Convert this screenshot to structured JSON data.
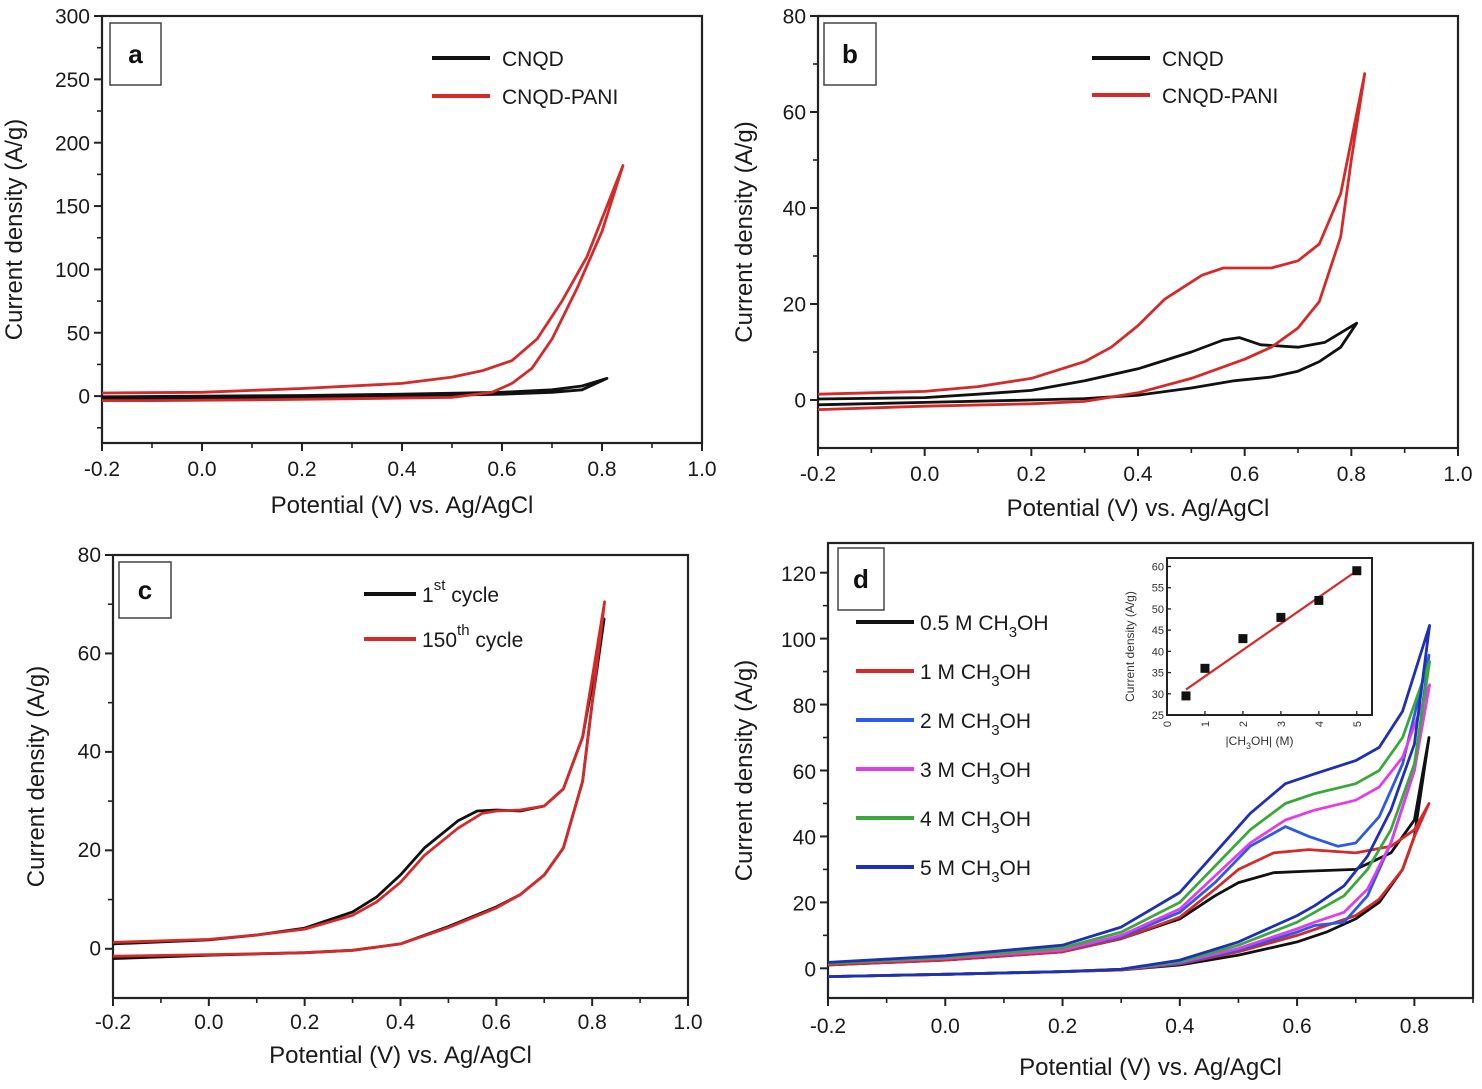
{
  "figure": {
    "panels": [
      "a",
      "b",
      "c",
      "d"
    ]
  },
  "chart_data": [
    {
      "id": "a",
      "type": "line",
      "panel_label": "a",
      "title": "",
      "xlabel": "Potential (V) vs. Ag/AgCl",
      "ylabel": "Current density (A/g)",
      "xlim": [
        -0.2,
        1.0
      ],
      "ylim": [
        -37,
        300
      ],
      "xticks": [
        -0.2,
        0.0,
        0.2,
        0.4,
        0.6,
        0.8,
        1.0
      ],
      "xtick_labels": [
        "-0.2",
        "0.0",
        "0.2",
        "0.4",
        "0.6",
        "0.8",
        "1.0"
      ],
      "yticks": [
        0,
        50,
        100,
        150,
        200,
        250,
        300
      ],
      "ytick_labels": [
        "0",
        "50",
        "100",
        "150",
        "200",
        "250",
        "300"
      ],
      "grid": false,
      "legend_position": "top-right",
      "series": [
        {
          "name": "CNQD",
          "color": "#111111",
          "x": [
            -0.2,
            0.0,
            0.2,
            0.4,
            0.6,
            0.7,
            0.76,
            0.81,
            0.76,
            0.7,
            0.6,
            0.4,
            0.2,
            0.0,
            -0.2
          ],
          "y": [
            -0.5,
            0,
            0.5,
            1.5,
            3,
            5,
            8,
            14,
            5,
            3,
            1.5,
            0,
            -1,
            -1.5,
            -2
          ]
        },
        {
          "name": "CNQD-PANI",
          "color": "#d42a2a",
          "x": [
            -0.2,
            0.0,
            0.2,
            0.4,
            0.5,
            0.56,
            0.62,
            0.67,
            0.72,
            0.77,
            0.842,
            0.8,
            0.75,
            0.7,
            0.66,
            0.62,
            0.58,
            0.5,
            0.3,
            0.1,
            -0.1,
            -0.2
          ],
          "y": [
            2.5,
            3,
            6,
            10,
            15,
            20,
            28,
            45,
            75,
            110,
            182,
            130,
            85,
            45,
            22,
            10,
            3,
            -1,
            -2,
            -3,
            -3.5,
            -3.5
          ]
        }
      ]
    },
    {
      "id": "b",
      "type": "line",
      "panel_label": "b",
      "title": "",
      "xlabel": "Potential (V) vs. Ag/AgCl",
      "ylabel": "Current density (A/g)",
      "xlim": [
        -0.2,
        1.0
      ],
      "ylim": [
        -10,
        80
      ],
      "xticks": [
        -0.2,
        0.0,
        0.2,
        0.4,
        0.6,
        0.8,
        1.0
      ],
      "xtick_labels": [
        "-0.2",
        "0.0",
        "0.2",
        "0.4",
        "0.6",
        "0.8",
        "1.0"
      ],
      "yticks": [
        0,
        20,
        40,
        60,
        80
      ],
      "ytick_labels": [
        "0",
        "20",
        "40",
        "60",
        "80"
      ],
      "grid": false,
      "legend_position": "top-right",
      "series": [
        {
          "name": "CNQD",
          "color": "#111111",
          "x": [
            -0.2,
            0.0,
            0.1,
            0.2,
            0.3,
            0.4,
            0.5,
            0.56,
            0.59,
            0.63,
            0.7,
            0.75,
            0.81,
            0.78,
            0.74,
            0.7,
            0.65,
            0.58,
            0.5,
            0.4,
            0.3,
            0.2,
            0.0,
            -0.2
          ],
          "y": [
            0.2,
            0.5,
            1.2,
            2,
            4,
            6.5,
            10,
            12.5,
            13,
            11.5,
            11,
            12,
            16,
            11,
            8,
            6,
            4.8,
            4,
            2.5,
            1,
            0.3,
            0,
            -0.5,
            -1
          ],
          "peak_anodic": {
            "x": 0.58,
            "y": 13
          }
        },
        {
          "name": "CNQD-PANI",
          "color": "#d42a2a",
          "x": [
            -0.2,
            0.0,
            0.1,
            0.2,
            0.3,
            0.35,
            0.4,
            0.45,
            0.52,
            0.56,
            0.6,
            0.65,
            0.7,
            0.74,
            0.78,
            0.825,
            0.8,
            0.78,
            0.74,
            0.7,
            0.65,
            0.6,
            0.5,
            0.4,
            0.3,
            0.2,
            0.0,
            -0.2
          ],
          "y": [
            1.2,
            1.8,
            2.8,
            4.5,
            8,
            11,
            15.5,
            21,
            26,
            27.5,
            27.5,
            27.5,
            29,
            32.5,
            43,
            68,
            50,
            34,
            20.5,
            15,
            11,
            8.5,
            4.5,
            1.5,
            -0.3,
            -0.8,
            -1.3,
            -2
          ],
          "peak_anodic": {
            "x": 0.58,
            "y": 27.5
          }
        }
      ]
    },
    {
      "id": "c",
      "type": "line",
      "panel_label": "c",
      "title": "",
      "xlabel": "Potential (V) vs. Ag/AgCl",
      "ylabel": "Current density (A/g)",
      "xlim": [
        -0.2,
        1.0
      ],
      "ylim": [
        -10,
        80
      ],
      "xticks": [
        -0.2,
        0.0,
        0.2,
        0.4,
        0.6,
        0.8,
        1.0
      ],
      "xtick_labels": [
        "-0.2",
        "0.0",
        "0.2",
        "0.4",
        "0.6",
        "0.8",
        "1.0"
      ],
      "yticks": [
        0,
        20,
        40,
        60,
        80
      ],
      "ytick_labels": [
        "0",
        "20",
        "40",
        "60",
        "80"
      ],
      "grid": false,
      "legend_position": "top-right",
      "series": [
        {
          "name": "1st cycle",
          "name_base": "1",
          "name_sup": "st",
          "name_suffix": " cycle",
          "color": "#111111",
          "x": [
            -0.2,
            0.0,
            0.1,
            0.2,
            0.3,
            0.35,
            0.4,
            0.45,
            0.52,
            0.56,
            0.6,
            0.65,
            0.7,
            0.74,
            0.78,
            0.825,
            0.8,
            0.78,
            0.74,
            0.7,
            0.65,
            0.6,
            0.5,
            0.4,
            0.3,
            0.2,
            0.0,
            -0.2
          ],
          "y": [
            1,
            1.8,
            2.8,
            4.2,
            7.5,
            10.5,
            15,
            20.5,
            26,
            28,
            28.2,
            28,
            29,
            32.5,
            43,
            67,
            50,
            34,
            20.5,
            15,
            11,
            8.5,
            4.5,
            1,
            -0.3,
            -0.8,
            -1.3,
            -2
          ]
        },
        {
          "name": "150th cycle",
          "name_base": "150",
          "name_sup": "th",
          "name_suffix": " cycle",
          "color": "#d42a2a",
          "x": [
            -0.2,
            0.0,
            0.1,
            0.2,
            0.3,
            0.35,
            0.4,
            0.45,
            0.52,
            0.57,
            0.6,
            0.65,
            0.7,
            0.74,
            0.78,
            0.826,
            0.8,
            0.78,
            0.74,
            0.7,
            0.65,
            0.6,
            0.5,
            0.4,
            0.3,
            0.2,
            0.0,
            -0.2
          ],
          "y": [
            1.3,
            1.9,
            2.8,
            4,
            6.8,
            9.5,
            13.5,
            19,
            24.5,
            27.5,
            28,
            28.2,
            29,
            32.5,
            43,
            70.5,
            50,
            34,
            20.5,
            15,
            11,
            8.3,
            4.3,
            1,
            -0.3,
            -0.8,
            -1.2,
            -1.5
          ]
        }
      ]
    },
    {
      "id": "d",
      "type": "line",
      "panel_label": "d",
      "title": "",
      "xlabel": "Potential (V) vs. Ag/AgCl",
      "ylabel": "Current density (A/g)",
      "xlim": [
        -0.2,
        0.9
      ],
      "ylim": [
        -9,
        129
      ],
      "xticks": [
        -0.2,
        0.0,
        0.2,
        0.4,
        0.6,
        0.8
      ],
      "xtick_labels": [
        "-0.2",
        "0.0",
        "0.2",
        "0.4",
        "0.6",
        "0.8"
      ],
      "yticks": [
        0,
        20,
        40,
        60,
        80,
        100,
        120
      ],
      "ytick_labels": [
        "0",
        "20",
        "40",
        "60",
        "80",
        "100",
        "120"
      ],
      "grid": false,
      "legend_position": "top-left",
      "series": [
        {
          "name": "0.5 M CH3OH",
          "label_main": "0.5 M CH",
          "label_sub": "3",
          "label_end": "OH",
          "color": "#111111",
          "x": [
            -0.2,
            0.0,
            0.2,
            0.3,
            0.4,
            0.46,
            0.5,
            0.56,
            0.62,
            0.7,
            0.76,
            0.8,
            0.825,
            0.8,
            0.78,
            0.74,
            0.7,
            0.65,
            0.6,
            0.5,
            0.4,
            0.3,
            0.2,
            0.0,
            -0.2
          ],
          "y": [
            1,
            2.5,
            5,
            9,
            15,
            22,
            26,
            29,
            29.5,
            30,
            35,
            45,
            70,
            40,
            30,
            20,
            15,
            11,
            8,
            4,
            1,
            -0.5,
            -1,
            -1.8,
            -2.5
          ]
        },
        {
          "name": "1 M CH3OH",
          "label_main": "1 M CH",
          "label_sub": "3",
          "label_end": "OH",
          "color": "#d42a2a",
          "x": [
            -0.2,
            0.0,
            0.2,
            0.3,
            0.4,
            0.46,
            0.5,
            0.56,
            0.62,
            0.7,
            0.76,
            0.8,
            0.825,
            0.8,
            0.78,
            0.74,
            0.7,
            0.65,
            0.6,
            0.5,
            0.4,
            0.3,
            0.2,
            0.0,
            -0.2
          ],
          "y": [
            1,
            2.5,
            5,
            9,
            15.5,
            24,
            30,
            35,
            36,
            35,
            37,
            42,
            50,
            40,
            30,
            21,
            16,
            13,
            10,
            5,
            1.3,
            -0.5,
            -1,
            -1.8,
            -2.5
          ]
        },
        {
          "name": "2 M CH3OH",
          "label_main": "2 M CH",
          "label_sub": "3",
          "label_end": "OH",
          "color": "#2a5ae6",
          "x": [
            -0.2,
            0.0,
            0.2,
            0.3,
            0.4,
            0.46,
            0.52,
            0.58,
            0.62,
            0.67,
            0.7,
            0.74,
            0.78,
            0.825,
            0.8,
            0.76,
            0.72,
            0.68,
            0.63,
            0.6,
            0.5,
            0.4,
            0.3,
            0.2,
            0.0,
            -0.2
          ],
          "y": [
            1.5,
            3,
            5.5,
            9.5,
            17,
            26,
            37,
            43,
            40,
            37,
            38,
            46,
            62,
            95,
            60,
            38,
            22,
            14,
            13,
            11,
            5.5,
            1.5,
            -0.3,
            -1,
            -1.8,
            -2.5
          ]
        },
        {
          "name": "3 M CH3OH",
          "label_main": "3 M CH",
          "label_sub": "3",
          "label_end": "OH",
          "color": "#e23ee8",
          "x": [
            -0.2,
            0.0,
            0.2,
            0.3,
            0.4,
            0.46,
            0.52,
            0.58,
            0.63,
            0.7,
            0.74,
            0.78,
            0.826,
            0.8,
            0.76,
            0.72,
            0.68,
            0.63,
            0.6,
            0.5,
            0.4,
            0.3,
            0.2,
            0.0,
            -0.2
          ],
          "y": [
            1.5,
            3,
            5.5,
            10,
            18,
            28,
            38,
            45,
            48,
            51,
            55,
            64,
            86,
            60,
            38,
            24,
            17,
            14,
            12,
            6,
            1.8,
            -0.3,
            -1,
            -1.8,
            -2.5
          ]
        },
        {
          "name": "4 M CH3OH",
          "label_main": "4 M CH",
          "label_sub": "3",
          "label_end": "OH",
          "color": "#3aa83a",
          "x": [
            -0.2,
            0.0,
            0.2,
            0.3,
            0.4,
            0.46,
            0.52,
            0.58,
            0.63,
            0.7,
            0.74,
            0.78,
            0.826,
            0.8,
            0.76,
            0.72,
            0.68,
            0.63,
            0.6,
            0.5,
            0.4,
            0.3,
            0.2,
            0.0,
            -0.2
          ],
          "y": [
            1.5,
            3.3,
            6.2,
            11,
            20,
            31,
            42,
            50,
            53,
            56,
            60,
            70,
            93,
            62,
            42,
            30,
            22,
            17,
            14,
            7,
            2,
            -0.3,
            -1,
            -1.8,
            -2.5
          ]
        },
        {
          "name": "5 M CH3OH",
          "label_main": "5 M CH",
          "label_sub": "3",
          "label_end": "OH",
          "color": "#1e2fb8",
          "x": [
            -0.2,
            0.0,
            0.2,
            0.3,
            0.4,
            0.46,
            0.52,
            0.58,
            0.63,
            0.7,
            0.74,
            0.78,
            0.826,
            0.8,
            0.76,
            0.72,
            0.68,
            0.63,
            0.6,
            0.5,
            0.4,
            0.3,
            0.2,
            0.0,
            -0.2
          ],
          "y": [
            1.8,
            3.8,
            7,
            12.5,
            23,
            35,
            47,
            56,
            59,
            63,
            67,
            78,
            104,
            68,
            48,
            34,
            25,
            19,
            16,
            8,
            2.5,
            -0.3,
            -1,
            -1.8,
            -2.5
          ]
        }
      ],
      "inset": {
        "type": "scatter",
        "xlabel": "[CH3OH] (M)",
        "xlabel_main": "|CH",
        "xlabel_sub": "3",
        "xlabel_end": "OH| (M)",
        "ylabel": "Current density (A/g)",
        "xlim": [
          0,
          5.4
        ],
        "ylim": [
          25,
          62
        ],
        "xticks": [
          0,
          1,
          2,
          3,
          4,
          5
        ],
        "xtick_labels": [
          "0",
          "1",
          "2",
          "3",
          "4",
          "5"
        ],
        "yticks": [
          25,
          30,
          35,
          40,
          45,
          50,
          55,
          60
        ],
        "ytick_labels": [
          "25",
          "30",
          "35",
          "40",
          "45",
          "50",
          "55",
          "60"
        ],
        "points": {
          "x": [
            0.5,
            1,
            2,
            3,
            4,
            5
          ],
          "y": [
            29.5,
            36,
            43,
            48,
            52,
            59
          ],
          "color": "#111111"
        },
        "fit_line": {
          "x": [
            0.5,
            5
          ],
          "y": [
            31,
            59
          ],
          "color": "#d42a2a"
        }
      }
    }
  ]
}
